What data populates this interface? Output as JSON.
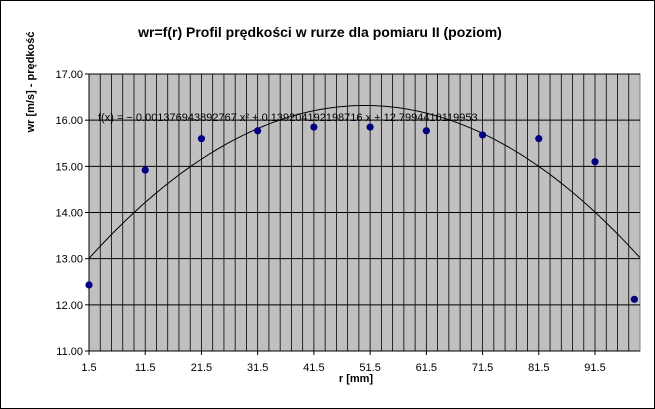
{
  "chart_data": {
    "type": "scatter",
    "title": "wr=f(r) Profil prędkości w rurze dla pomiaru II (poziom)",
    "xlabel": "r [mm]",
    "ylabel": "wr [m/s] - prędkość",
    "xlim": [
      1.5,
      99.5
    ],
    "ylim": [
      11.0,
      17.0
    ],
    "x_ticks": [
      "1.5",
      "11.5",
      "21.5",
      "31.5",
      "41.5",
      "51.5",
      "61.5",
      "71.5",
      "81.5",
      "91.5"
    ],
    "y_ticks": [
      "11.00",
      "12.00",
      "13.00",
      "14.00",
      "15.00",
      "16.00",
      "17.00"
    ],
    "minor_x_grid_step": 2,
    "plot_background": "#c0c0c0",
    "point_color": "#000080",
    "series": [
      {
        "values": [
          {
            "x": 1.5,
            "y": 12.43
          },
          {
            "x": 11.5,
            "y": 14.92
          },
          {
            "x": 21.5,
            "y": 15.6
          },
          {
            "x": 31.5,
            "y": 15.77
          },
          {
            "x": 41.5,
            "y": 15.85
          },
          {
            "x": 51.5,
            "y": 15.85
          },
          {
            "x": 61.5,
            "y": 15.77
          },
          {
            "x": 71.5,
            "y": 15.68
          },
          {
            "x": 81.5,
            "y": 15.6
          },
          {
            "x": 91.5,
            "y": 15.1
          },
          {
            "x": 98.5,
            "y": 12.12
          }
        ]
      }
    ],
    "trendline": {
      "type": "polynomial",
      "a": -0.001376943892767,
      "b": 0.139204192198716,
      "c": 12.7994410119953,
      "equation": "f(x) = − 0.001376943892767 x² + 0.139204192198716 x + 12.7994410119953"
    }
  }
}
